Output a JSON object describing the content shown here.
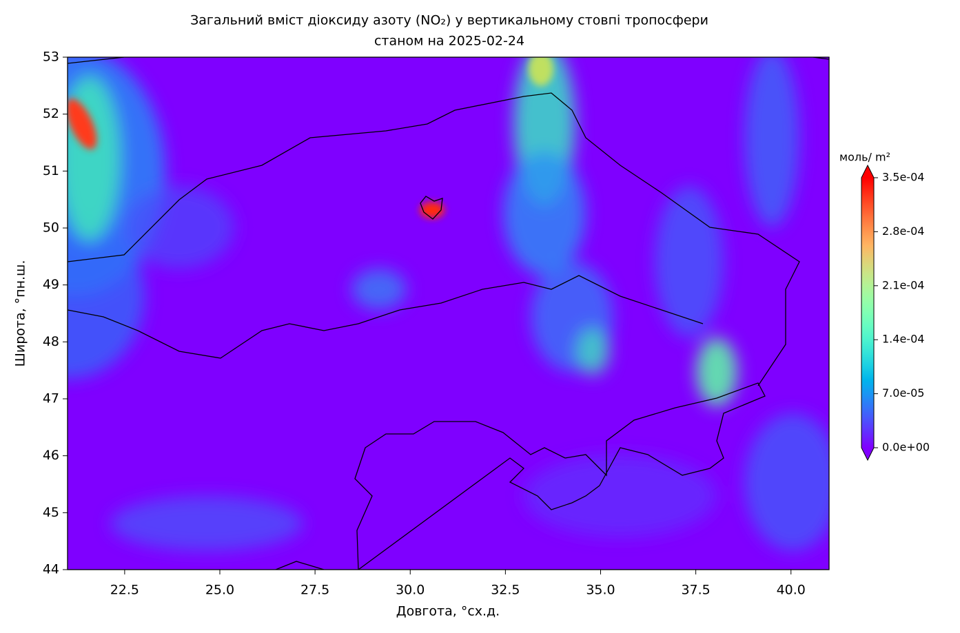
{
  "chart_data": {
    "type": "map",
    "title": "Загальний вміст діоксиду азоту (NO₂) у вертикальному стовпі тропосфери",
    "subtitle": "станом на 2025-02-24",
    "xlabel": "Довгота, °сх.д.",
    "ylabel": "Широта, °пн.ш.",
    "xlim": [
      21,
      41
    ],
    "ylim": [
      44,
      53
    ],
    "xticks": [
      22.5,
      {
        "value": 25,
        "label": "25.0"
      },
      27.5,
      {
        "value": 30,
        "label": "30.0"
      },
      32.5,
      {
        "value": 35,
        "label": "35.0"
      },
      37.5,
      {
        "value": 40,
        "label": "40.0"
      }
    ],
    "yticks": [
      44,
      45,
      46,
      47,
      48,
      49,
      50,
      51,
      52,
      53
    ],
    "colormap": "rainbow",
    "colorbar_label": "моль/ m²",
    "clim": [
      0,
      0.00035
    ],
    "colorbar_ticks": [
      {
        "value": 0,
        "label": "0.0e+00"
      },
      {
        "value": 7e-05,
        "label": "7.0e-05"
      },
      {
        "value": 0.00014,
        "label": "1.4e-04"
      },
      {
        "value": 0.00021,
        "label": "2.1e-04"
      },
      {
        "value": 0.00028,
        "label": "2.8e-04"
      },
      {
        "value": 0.00035,
        "label": "3.5e-04"
      }
    ]
  }
}
